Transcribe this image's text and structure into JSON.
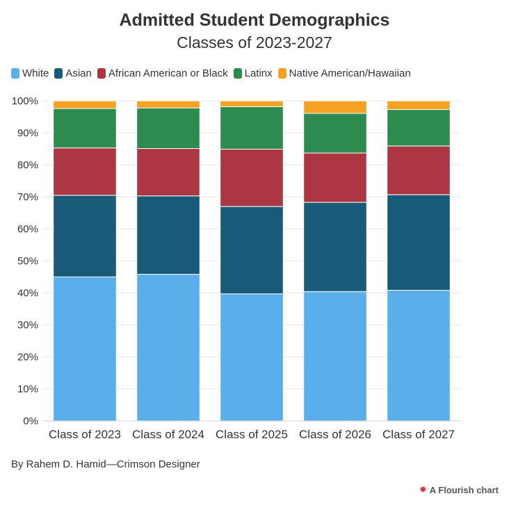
{
  "chart_data": {
    "type": "bar",
    "stacked": true,
    "title": "Admitted Student Demographics",
    "subtitle": "Classes of 2023-2027",
    "categories": [
      "Class of 2023",
      "Class of 2024",
      "Class of 2025",
      "Class of 2026",
      "Class of 2027"
    ],
    "series": [
      {
        "name": "White",
        "color": "#5aaee9",
        "values": [
          45.0,
          45.8,
          39.7,
          40.4,
          40.8
        ]
      },
      {
        "name": "Asian",
        "color": "#185a78",
        "values": [
          25.5,
          24.5,
          27.3,
          27.9,
          29.9
        ]
      },
      {
        "name": "African American or Black",
        "color": "#ac3742",
        "values": [
          14.8,
          14.8,
          17.9,
          15.4,
          15.2
        ]
      },
      {
        "name": "Latinx",
        "color": "#2e8b4f",
        "values": [
          12.3,
          12.7,
          13.3,
          12.4,
          11.4
        ]
      },
      {
        "name": "Native American/Hawaiian",
        "color": "#f4a124",
        "values": [
          2.4,
          2.2,
          1.8,
          3.9,
          2.7
        ]
      }
    ],
    "ylim": [
      0,
      100
    ],
    "yticks": [
      "0%",
      "10%",
      "20%",
      "30%",
      "40%",
      "50%",
      "60%",
      "70%",
      "80%",
      "90%",
      "100%"
    ],
    "grid": true,
    "legend_position": "top-left"
  },
  "footer": {
    "credit": "By Rahem D. Hamid—Crimson Designer",
    "brand": "A Flourish chart"
  }
}
